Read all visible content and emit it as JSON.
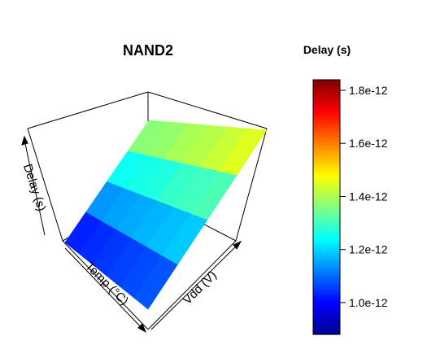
{
  "chart_data": {
    "type": "surface3d",
    "title": "NAND2",
    "axes": {
      "x_label": "Temp (°C)",
      "y_label": "Vdd (V)",
      "z_label": "Delay (s)"
    },
    "colorbar": {
      "title": "Delay (s)",
      "zlim": [
        8.8e-13,
        1.84e-12
      ],
      "ticks": [
        {
          "value": 1e-12,
          "label": "1.0e-12"
        },
        {
          "value": 1.2e-12,
          "label": "1.2e-12"
        },
        {
          "value": 1.4e-12,
          "label": "1.4e-12"
        },
        {
          "value": 1.6e-12,
          "label": "1.6e-12"
        },
        {
          "value": 1.8e-12,
          "label": "1.8e-12"
        }
      ],
      "palette": [
        "#00008f",
        "#0000ff",
        "#0080ff",
        "#00ffff",
        "#80ff80",
        "#ffff00",
        "#ff8000",
        "#ff0000",
        "#800000"
      ]
    },
    "surface": {
      "rows": 4,
      "cols": 6,
      "values": [
        [
          1.03e-12,
          1.04e-12,
          1.05e-12,
          1.06e-12,
          1.07e-12,
          1.08e-12
        ],
        [
          1.14e-12,
          1.15e-12,
          1.16e-12,
          1.17e-12,
          1.18e-12,
          1.19e-12
        ],
        [
          1.25e-12,
          1.26e-12,
          1.27e-12,
          1.29e-12,
          1.3e-12,
          1.31e-12
        ],
        [
          1.37e-12,
          1.38e-12,
          1.4e-12,
          1.41e-12,
          1.43e-12,
          1.45e-12
        ]
      ]
    }
  }
}
